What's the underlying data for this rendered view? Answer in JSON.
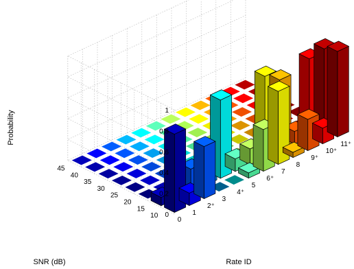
{
  "chart_data": {
    "type": "bar3d",
    "title": "",
    "xlabel": "Rate ID",
    "ylabel": "SNR (dB)",
    "zlabel": "Probability",
    "zlim": [
      0,
      1
    ],
    "z_ticks": [
      "0",
      "0.2",
      "0.4",
      "0.6",
      "0.8",
      "1"
    ],
    "rate_ids": [
      "0",
      "1",
      "2⁺",
      "3",
      "4⁺",
      "5",
      "6⁺",
      "7",
      "8",
      "9⁺",
      "10⁺",
      "11⁺"
    ],
    "snr_values": [
      "10",
      "15",
      "20",
      "25",
      "30",
      "35",
      "40",
      "45"
    ],
    "grid": true,
    "colormap": "jet",
    "bars": [
      {
        "rate_index": 0,
        "snr_index": 0,
        "value": 0.75
      },
      {
        "rate_index": 0,
        "snr_index": 1,
        "value": 0.08
      },
      {
        "rate_index": 1,
        "snr_index": 0,
        "value": 0.12
      },
      {
        "rate_index": 1,
        "snr_index": 1,
        "value": 0.25
      },
      {
        "rate_index": 2,
        "snr_index": 0,
        "value": 0.5
      },
      {
        "rate_index": 2,
        "snr_index": 1,
        "value": 0.22
      },
      {
        "rate_index": 3,
        "snr_index": 1,
        "value": 0.05
      },
      {
        "rate_index": 3,
        "snr_index": 2,
        "value": 0.05
      },
      {
        "rate_index": 4,
        "snr_index": 1,
        "value": 0.75
      },
      {
        "rate_index": 4,
        "snr_index": 2,
        "value": 0.05
      },
      {
        "rate_index": 5,
        "snr_index": 0,
        "value": 0.05
      },
      {
        "rate_index": 5,
        "snr_index": 1,
        "value": 0.12
      },
      {
        "rate_index": 5,
        "snr_index": 2,
        "value": 0.05
      },
      {
        "rate_index": 6,
        "snr_index": 0,
        "value": 0.4
      },
      {
        "rate_index": 6,
        "snr_index": 1,
        "value": 0.15
      },
      {
        "rate_index": 7,
        "snr_index": 0,
        "value": 0.7
      },
      {
        "rate_index": 7,
        "snr_index": 1,
        "value": 0.78
      },
      {
        "rate_index": 8,
        "snr_index": 0,
        "value": 0.05
      },
      {
        "rate_index": 8,
        "snr_index": 1,
        "value": 0.68
      },
      {
        "rate_index": 8,
        "snr_index": 2,
        "value": 0.3
      },
      {
        "rate_index": 9,
        "snr_index": 0,
        "value": 0.3
      },
      {
        "rate_index": 9,
        "snr_index": 1,
        "value": 0.12
      },
      {
        "rate_index": 10,
        "snr_index": 0,
        "value": 0.15
      },
      {
        "rate_index": 10,
        "snr_index": 1,
        "value": 0.75
      },
      {
        "rate_index": 11,
        "snr_index": 0,
        "value": 0.82
      },
      {
        "rate_index": 11,
        "snr_index": 1,
        "value": 0.78
      }
    ]
  }
}
